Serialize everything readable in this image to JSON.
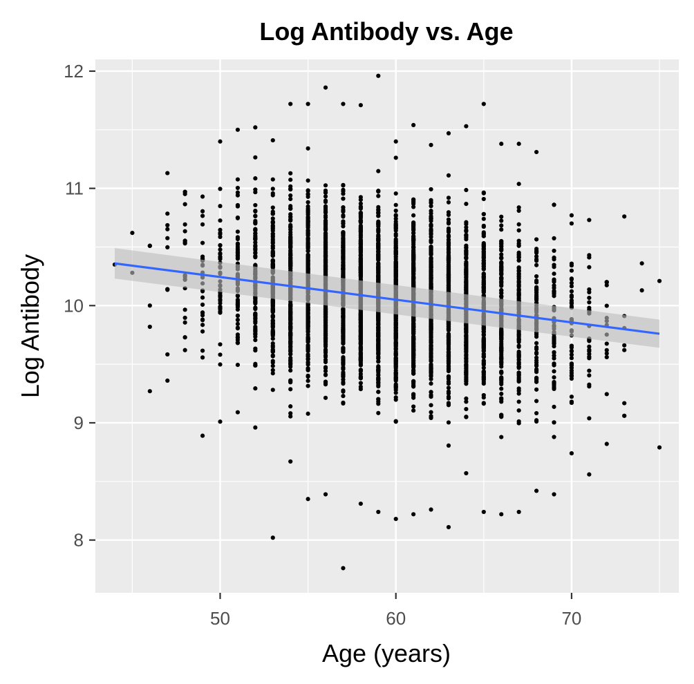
{
  "chart_data": {
    "type": "scatter",
    "title": "Log Antibody vs. Age",
    "xlabel": "Age (years)",
    "ylabel": "Log Antibody",
    "xlim": [
      42.9,
      76.1
    ],
    "ylim": [
      7.55,
      12.1
    ],
    "x_ticks": [
      50,
      60,
      70
    ],
    "y_ticks": [
      8,
      9,
      10,
      11,
      12
    ],
    "x_tick_labels": [
      "50",
      "60",
      "70"
    ],
    "y_tick_labels": [
      "8",
      "9",
      "10",
      "11",
      "12"
    ],
    "grid": true,
    "legend": "none",
    "background_color": "#ebebeb",
    "point_color": "#000000",
    "trend_color": "#3366ff",
    "ci_color": "#bdbdbd",
    "age_distribution": [
      {
        "age": 44,
        "count": 1,
        "min": 10.35,
        "max": 10.35
      },
      {
        "age": 45,
        "count": 2,
        "min": 10.28,
        "max": 10.62
      },
      {
        "age": 46,
        "count": 6,
        "min": 9.27,
        "max": 10.51
      },
      {
        "age": 47,
        "count": 10,
        "min": 9.36,
        "max": 11.13
      },
      {
        "age": 48,
        "count": 22,
        "min": 9.62,
        "max": 10.97
      },
      {
        "age": 49,
        "count": 30,
        "min": 8.89,
        "max": 10.93
      },
      {
        "age": 50,
        "count": 45,
        "min": 9.01,
        "max": 11.4
      },
      {
        "age": 51,
        "count": 75,
        "min": 9.09,
        "max": 11.5
      },
      {
        "age": 52,
        "count": 120,
        "min": 8.96,
        "max": 11.52
      },
      {
        "age": 53,
        "count": 170,
        "min": 8.02,
        "max": 11.41
      },
      {
        "age": 54,
        "count": 230,
        "min": 8.67,
        "max": 11.72
      },
      {
        "age": 55,
        "count": 290,
        "min": 8.35,
        "max": 11.72
      },
      {
        "age": 56,
        "count": 330,
        "min": 8.39,
        "max": 11.86
      },
      {
        "age": 57,
        "count": 360,
        "min": 7.76,
        "max": 11.72
      },
      {
        "age": 58,
        "count": 370,
        "min": 8.31,
        "max": 11.71
      },
      {
        "age": 59,
        "count": 370,
        "min": 8.24,
        "max": 11.96
      },
      {
        "age": 60,
        "count": 360,
        "min": 8.18,
        "max": 11.4
      },
      {
        "age": 61,
        "count": 350,
        "min": 8.22,
        "max": 11.54
      },
      {
        "age": 62,
        "count": 330,
        "min": 8.26,
        "max": 11.37
      },
      {
        "age": 63,
        "count": 300,
        "min": 8.11,
        "max": 11.47
      },
      {
        "age": 64,
        "count": 260,
        "min": 8.57,
        "max": 11.53
      },
      {
        "age": 65,
        "count": 220,
        "min": 8.24,
        "max": 11.72
      },
      {
        "age": 66,
        "count": 170,
        "min": 8.22,
        "max": 11.38
      },
      {
        "age": 67,
        "count": 130,
        "min": 8.24,
        "max": 11.38
      },
      {
        "age": 68,
        "count": 90,
        "min": 8.42,
        "max": 11.31
      },
      {
        "age": 69,
        "count": 65,
        "min": 8.39,
        "max": 10.86
      },
      {
        "age": 70,
        "count": 45,
        "min": 8.74,
        "max": 10.77
      },
      {
        "age": 71,
        "count": 30,
        "min": 8.56,
        "max": 10.73
      },
      {
        "age": 72,
        "count": 16,
        "min": 8.82,
        "max": 10.2
      },
      {
        "age": 73,
        "count": 8,
        "min": 9.06,
        "max": 10.76
      },
      {
        "age": 74,
        "count": 2,
        "min": 10.13,
        "max": 10.36
      },
      {
        "age": 75,
        "count": 2,
        "min": 8.79,
        "max": 10.21
      }
    ],
    "trend_line": {
      "method": "linear",
      "x": [
        44,
        75
      ],
      "y": [
        10.36,
        9.76
      ],
      "ci_lower": [
        10.23,
        9.64
      ],
      "ci_upper": [
        10.49,
        9.88
      ]
    }
  }
}
